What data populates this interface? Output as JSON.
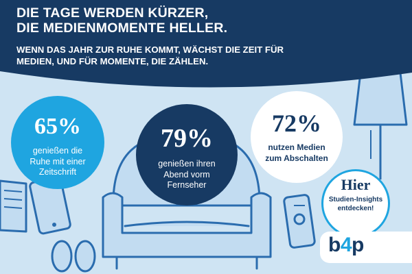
{
  "header": {
    "headline": [
      "DIE TAGE WERDEN KÜRZER,",
      "DIE MEDIENMOMENTE HELLER."
    ],
    "subline": [
      "WENN DAS JAHR ZUR RUHE KOMMT, WÄCHST DIE ZEIT FÜR",
      "MEDIEN, UND FÜR MOMENTE, DIE ZÄHLEN."
    ]
  },
  "stats": [
    {
      "value": "65%",
      "caption": [
        "genießen die",
        "Ruhe mit einer",
        "Zeitschrift"
      ]
    },
    {
      "value": "79%",
      "caption": [
        "genießen ihren",
        "Abend vorm",
        "Fernseher"
      ]
    },
    {
      "value": "72%",
      "caption": [
        "nutzen Medien",
        "zum Abschalten"
      ]
    }
  ],
  "cta": {
    "headline": "Hier",
    "caption": [
      "Studien-Insights",
      "entdecken!"
    ]
  },
  "logo": {
    "left": "b",
    "accent": "4",
    "right": "p"
  },
  "colors": {
    "navy": "#173a63",
    "blue": "#1fa5e0",
    "light_background": "#cfe4f3",
    "illustration_line": "#2a6cae",
    "white": "#ffffff"
  },
  "icons": [
    "magazine-icon",
    "tablet-icon",
    "slippers-icon",
    "armchair-icon",
    "lamp-icon",
    "remote-control-icon"
  ]
}
